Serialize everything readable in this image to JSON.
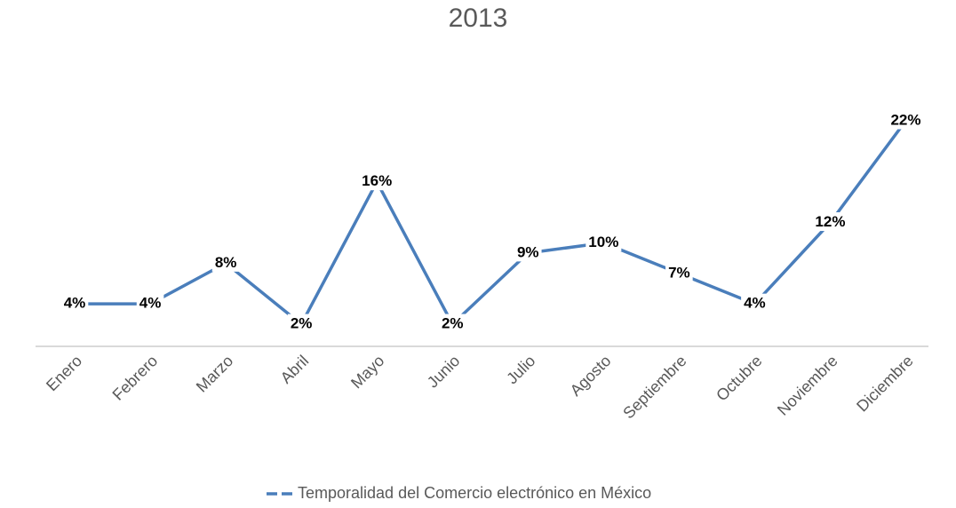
{
  "chart_data": {
    "type": "line",
    "title": "2013",
    "categories": [
      "Enero",
      "Febrero",
      "Marzo",
      "Abril",
      "Mayo",
      "Junio",
      "Julio",
      "Agosto",
      "Septiembre",
      "Octubre",
      "Noviembre",
      "Diciembre"
    ],
    "series": [
      {
        "name": "Temporalidad del Comercio electrónico en México",
        "color": "#4a7ebb",
        "values": [
          4,
          4,
          8,
          2,
          16,
          2,
          9,
          10,
          7,
          4,
          12,
          22
        ],
        "value_labels": [
          "4%",
          "4%",
          "8%",
          "2%",
          "16%",
          "2%",
          "9%",
          "10%",
          "7%",
          "4%",
          "12%",
          "22%"
        ]
      }
    ],
    "legend": "bottom"
  }
}
